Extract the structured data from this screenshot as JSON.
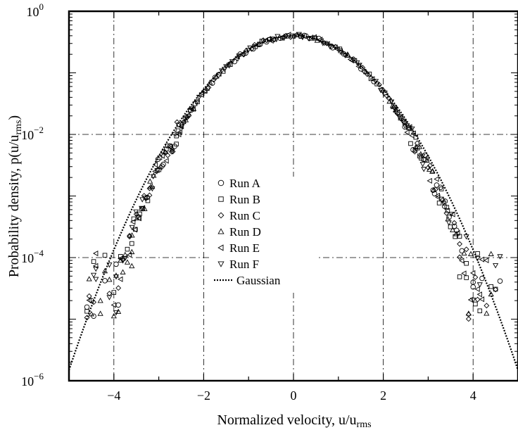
{
  "chart_data": {
    "type": "scatter",
    "xlabel": "Normalized velocity, u/u",
    "xlabel_sub": "rms",
    "ylabel": "Probability density, p(u/u",
    "ylabel_sub": "rms",
    "ylabel_close": ")",
    "xlim": [
      -5,
      5
    ],
    "ylim": [
      1e-06,
      1
    ],
    "yscale": "log",
    "grid": true,
    "legend_position": "center-left",
    "x_ticks": [
      -4,
      -2,
      0,
      2,
      4
    ],
    "x_tick_labels": [
      "−4",
      "−2",
      "0",
      "2",
      "4"
    ],
    "y_ticks": [
      1e-06,
      0.0001,
      0.01,
      1
    ],
    "y_tick_bases": [
      "10",
      "10",
      "10",
      "10"
    ],
    "y_tick_exponents": [
      "−6",
      "−4",
      "−2",
      "0"
    ],
    "series": [
      {
        "name": "Run A",
        "marker": "circle"
      },
      {
        "name": "Run B",
        "marker": "square"
      },
      {
        "name": "Run C",
        "marker": "diamond"
      },
      {
        "name": "Run D",
        "marker": "triangle-up"
      },
      {
        "name": "Run E",
        "marker": "triangle-left"
      },
      {
        "name": "Run F",
        "marker": "triangle-down"
      },
      {
        "name": "Gaussian",
        "marker": "dotted-line"
      }
    ],
    "tail_points": {
      "left_x": [
        -4.6,
        -4.55,
        -4.5,
        -4.45,
        -4.4,
        -4.3,
        -4.2,
        -4.1,
        -4.0,
        -3.95,
        -3.9,
        -3.85,
        -3.8,
        -3.75,
        -3.7,
        -3.65,
        -3.6
      ],
      "right_x": [
        3.7,
        3.75,
        3.8,
        3.85,
        3.9,
        3.95,
        4.0,
        4.05,
        4.1,
        4.15,
        4.2,
        4.3,
        4.4,
        4.5,
        4.6
      ]
    }
  }
}
